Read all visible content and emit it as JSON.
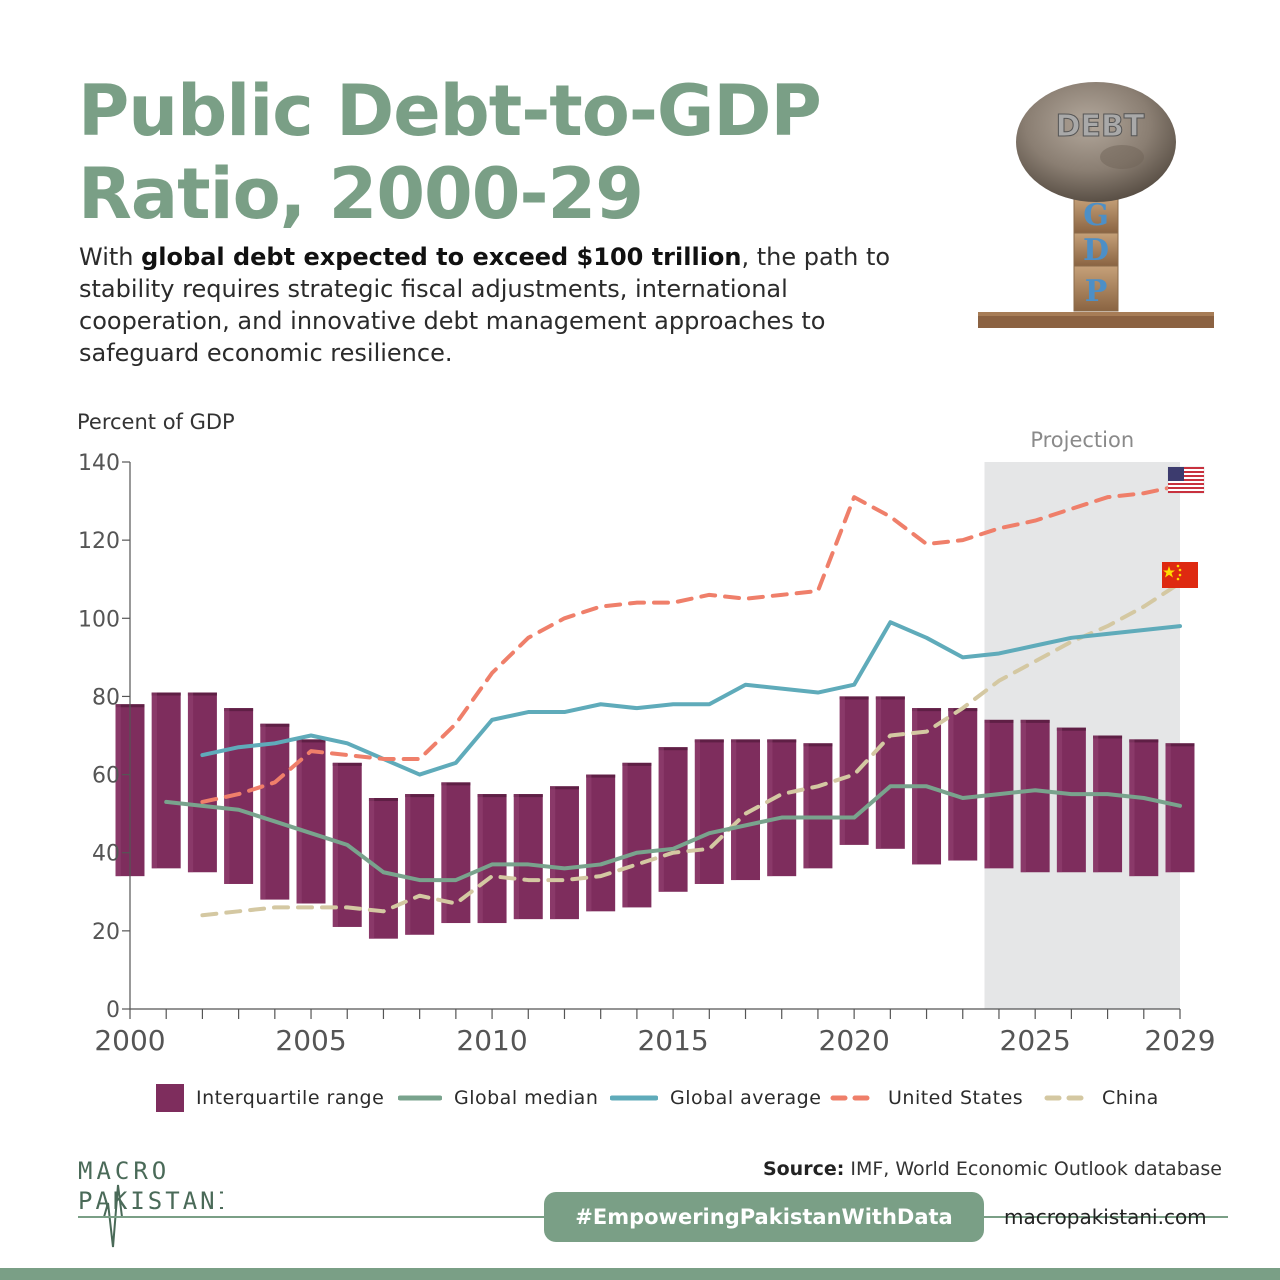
{
  "header": {
    "title": "Public Debt-to-GDP Ratio, 2000-29",
    "subtitle_pre": "With ",
    "subtitle_bold": "global debt expected to exceed $100 trillion",
    "subtitle_post": ", the path to stability requires strategic fiscal adjustments, international cooperation, and innovative debt management approaches to safeguard economic resilience."
  },
  "illustration": {
    "rock_label": "DEBT",
    "blocks": [
      "G",
      "D",
      "P"
    ]
  },
  "chart_data": {
    "type": "line",
    "ylabel": "Percent of GDP",
    "ylim": [
      0,
      140
    ],
    "yticks": [
      0,
      20,
      40,
      60,
      80,
      100,
      120,
      140
    ],
    "xlim": [
      2000,
      2029
    ],
    "xticks": [
      2000,
      2005,
      2010,
      2015,
      2020,
      2025,
      2029
    ],
    "projection": {
      "label": "Projection",
      "from": 2024,
      "to": 2029
    },
    "interquartile_range": {
      "name": "Interquartile range",
      "x": [
        2000,
        2001,
        2002,
        2003,
        2004,
        2005,
        2006,
        2007,
        2008,
        2009,
        2010,
        2011,
        2012,
        2013,
        2014,
        2015,
        2016,
        2017,
        2018,
        2019,
        2020,
        2021,
        2022,
        2023,
        2024,
        2025,
        2026,
        2027,
        2028,
        2029
      ],
      "low": [
        34,
        36,
        35,
        32,
        28,
        27,
        21,
        18,
        19,
        22,
        22,
        23,
        23,
        25,
        26,
        30,
        32,
        33,
        34,
        36,
        42,
        41,
        37,
        38,
        36,
        35,
        35,
        35,
        34,
        35
      ],
      "high": [
        78,
        81,
        81,
        77,
        73,
        69,
        63,
        54,
        55,
        58,
        55,
        55,
        57,
        60,
        63,
        67,
        69,
        69,
        69,
        68,
        80,
        80,
        77,
        77,
        74,
        74,
        72,
        70,
        69,
        68
      ]
    },
    "series": [
      {
        "name": "Global median",
        "style": "solid",
        "color": "#79a38d",
        "x": [
          2001,
          2002,
          2003,
          2004,
          2005,
          2006,
          2007,
          2008,
          2009,
          2010,
          2011,
          2012,
          2013,
          2014,
          2015,
          2016,
          2017,
          2018,
          2019,
          2020,
          2021,
          2022,
          2023,
          2024,
          2025,
          2026,
          2027,
          2028,
          2029
        ],
        "values": [
          53,
          52,
          51,
          48,
          45,
          42,
          35,
          33,
          33,
          37,
          37,
          36,
          37,
          40,
          41,
          45,
          47,
          49,
          49,
          49,
          57,
          57,
          54,
          55,
          56,
          55,
          55,
          54,
          52
        ]
      },
      {
        "name": "Global average",
        "style": "solid",
        "color": "#5fabba",
        "x": [
          2002,
          2003,
          2004,
          2005,
          2006,
          2007,
          2008,
          2009,
          2010,
          2011,
          2012,
          2013,
          2014,
          2015,
          2016,
          2017,
          2018,
          2019,
          2020,
          2021,
          2022,
          2023,
          2024,
          2025,
          2026,
          2027,
          2028,
          2029
        ],
        "values": [
          65,
          67,
          68,
          70,
          68,
          64,
          60,
          63,
          74,
          76,
          76,
          78,
          77,
          78,
          78,
          83,
          82,
          81,
          83,
          99,
          95,
          90,
          91,
          93,
          95,
          96,
          97,
          98
        ]
      },
      {
        "name": "United States",
        "style": "dashed",
        "color": "#ef7f6a",
        "x": [
          2002,
          2003,
          2004,
          2005,
          2006,
          2007,
          2008,
          2009,
          2010,
          2011,
          2012,
          2013,
          2014,
          2015,
          2016,
          2017,
          2018,
          2019,
          2020,
          2021,
          2022,
          2023,
          2024,
          2025,
          2026,
          2027,
          2028,
          2029
        ],
        "values": [
          53,
          55,
          58,
          66,
          65,
          64,
          64,
          73,
          86,
          95,
          100,
          103,
          104,
          104,
          106,
          105,
          106,
          107,
          131,
          126,
          119,
          120,
          123,
          125,
          128,
          131,
          132,
          134
        ]
      },
      {
        "name": "China",
        "style": "dashed",
        "color": "#d4c8a2",
        "x": [
          2002,
          2003,
          2004,
          2005,
          2006,
          2007,
          2008,
          2009,
          2010,
          2011,
          2012,
          2013,
          2014,
          2015,
          2016,
          2017,
          2018,
          2019,
          2020,
          2021,
          2022,
          2023,
          2024,
          2025,
          2026,
          2027,
          2028,
          2029
        ],
        "values": [
          24,
          25,
          26,
          26,
          26,
          25,
          29,
          27,
          34,
          33,
          33,
          34,
          37,
          40,
          41,
          50,
          55,
          57,
          60,
          70,
          71,
          77,
          84,
          89,
          94,
          98,
          103,
          109
        ]
      }
    ]
  },
  "legend": [
    {
      "label": "Interquartile range"
    },
    {
      "label": "Global median"
    },
    {
      "label": "Global average"
    },
    {
      "label": "United States"
    },
    {
      "label": "China"
    }
  ],
  "footer": {
    "logo_line1": "MACRO",
    "logo_line2": "PAKISTANI",
    "source_label": "Source:",
    "source_text": "IMF, World Economic Outlook database",
    "hashtag": "#EmpoweringPakistanWithData",
    "website": "macropakistani.com"
  },
  "colors": {
    "accent": "#7a9f86",
    "bar": "#7e2d5d",
    "projection_shade": "#e5e6e7"
  }
}
